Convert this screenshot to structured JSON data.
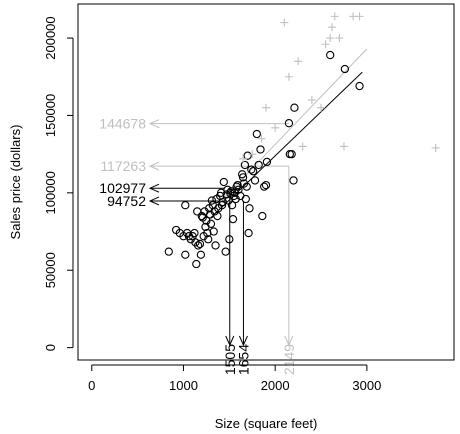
{
  "chart_data": {
    "type": "scatter",
    "xlabel": "Size (square feet)",
    "ylabel": "Sales price (dollars)",
    "xlim": [
      -150,
      3950
    ],
    "ylim": [
      -8000,
      222000
    ],
    "x_ticks": [
      0,
      1000,
      2000,
      3000
    ],
    "x_tick_labels": [
      "0",
      "1000",
      "2000",
      "3000"
    ],
    "y_ticks": [
      0,
      50000,
      100000,
      150000,
      200000
    ],
    "y_tick_labels": [
      "0",
      "50000",
      "100000",
      "150000",
      "200000"
    ],
    "grid": false,
    "legend": "none",
    "series": [
      {
        "marker": "circle",
        "color": "#000000",
        "points": [
          [
            840,
            62000
          ],
          [
            920,
            76000
          ],
          [
            960,
            74000
          ],
          [
            1000,
            72000
          ],
          [
            1020,
            60000
          ],
          [
            1040,
            74000
          ],
          [
            1060,
            72000
          ],
          [
            1080,
            70000
          ],
          [
            1100,
            72000
          ],
          [
            1120,
            74000
          ],
          [
            1130,
            68000
          ],
          [
            1140,
            54000
          ],
          [
            1150,
            88000
          ],
          [
            1160,
            66000
          ],
          [
            1180,
            67000
          ],
          [
            1190,
            60000
          ],
          [
            1200,
            85000
          ],
          [
            1210,
            84000
          ],
          [
            1220,
            72000
          ],
          [
            1230,
            88000
          ],
          [
            1240,
            78000
          ],
          [
            1250,
            82000
          ],
          [
            1260,
            74000
          ],
          [
            1270,
            70000
          ],
          [
            1280,
            90000
          ],
          [
            1290,
            86000
          ],
          [
            1300,
            80000
          ],
          [
            1310,
            95000
          ],
          [
            1320,
            92000
          ],
          [
            1330,
            75000
          ],
          [
            1340,
            88000
          ],
          [
            1350,
            66000
          ],
          [
            1360,
            96000
          ],
          [
            1370,
            85000
          ],
          [
            1380,
            90000
          ],
          [
            1400,
            98000
          ],
          [
            1410,
            100000
          ],
          [
            1420,
            92000
          ],
          [
            1430,
            94000
          ],
          [
            1440,
            107000
          ],
          [
            1460,
            62000
          ],
          [
            1470,
            99000
          ],
          [
            1480,
            102000
          ],
          [
            1490,
            95000
          ],
          [
            1500,
            70000
          ],
          [
            1510,
            100000
          ],
          [
            1520,
            101000
          ],
          [
            1530,
            92000
          ],
          [
            1540,
            83000
          ],
          [
            1550,
            98000
          ],
          [
            1560,
            100000
          ],
          [
            1570,
            96000
          ],
          [
            1580,
            104000
          ],
          [
            1590,
            105000
          ],
          [
            1600,
            102000
          ],
          [
            1620,
            98000
          ],
          [
            1640,
            112000
          ],
          [
            1650,
            110000
          ],
          [
            1660,
            106000
          ],
          [
            1670,
            118000
          ],
          [
            1680,
            96000
          ],
          [
            1690,
            104000
          ],
          [
            1700,
            124000
          ],
          [
            1710,
            74000
          ],
          [
            1720,
            90000
          ],
          [
            1740,
            115000
          ],
          [
            1760,
            114000
          ],
          [
            1780,
            108000
          ],
          [
            1800,
            138000
          ],
          [
            1820,
            118000
          ],
          [
            1840,
            128000
          ],
          [
            1860,
            85000
          ],
          [
            1880,
            104000
          ],
          [
            1900,
            105000
          ],
          [
            1910,
            120000
          ],
          [
            1020,
            92000
          ],
          [
            2150,
            145000
          ],
          [
            2160,
            125000
          ],
          [
            2180,
            125000
          ],
          [
            2200,
            108000
          ],
          [
            2210,
            155000
          ],
          [
            2600,
            189000
          ],
          [
            2760,
            180000
          ],
          [
            2920,
            169000
          ]
        ]
      },
      {
        "marker": "plus",
        "color": "#c0c0c0",
        "points": [
          [
            1650,
            122000
          ],
          [
            1750,
            125000
          ],
          [
            1850,
            135000
          ],
          [
            1900,
            155000
          ],
          [
            2000,
            142000
          ],
          [
            2100,
            210000
          ],
          [
            2150,
            175000
          ],
          [
            2250,
            185000
          ],
          [
            2300,
            130000
          ],
          [
            2400,
            160000
          ],
          [
            2500,
            155000
          ],
          [
            2550,
            196000
          ],
          [
            2600,
            200000
          ],
          [
            2620,
            207000
          ],
          [
            2650,
            214000
          ],
          [
            2700,
            200000
          ],
          [
            2750,
            130000
          ],
          [
            2850,
            214000
          ],
          [
            2920,
            214000
          ],
          [
            3750,
            129000
          ]
        ]
      }
    ],
    "fit_lines": [
      {
        "color": "#000000",
        "x": [
          1300,
          2950
        ],
        "y": [
          84000,
          178000
        ]
      },
      {
        "color": "#c0c0c0",
        "x": [
          1300,
          3000
        ],
        "y": [
          88000,
          193000
        ]
      }
    ],
    "annotations": [
      {
        "color": "#000000",
        "x": 1505,
        "y": 102977,
        "x_label": "1505",
        "y_label": "102977"
      },
      {
        "color": "#000000",
        "x": 1654,
        "y": 94752,
        "x_label": "1654",
        "y_label": "94752"
      },
      {
        "color": "#c0c0c0",
        "x": 2149,
        "y": 117263,
        "x_label": "2149",
        "y_label": "117263"
      },
      {
        "color": "#c0c0c0",
        "x": 2149,
        "y": 144678,
        "x_label": "",
        "y_label": "144678"
      }
    ]
  }
}
